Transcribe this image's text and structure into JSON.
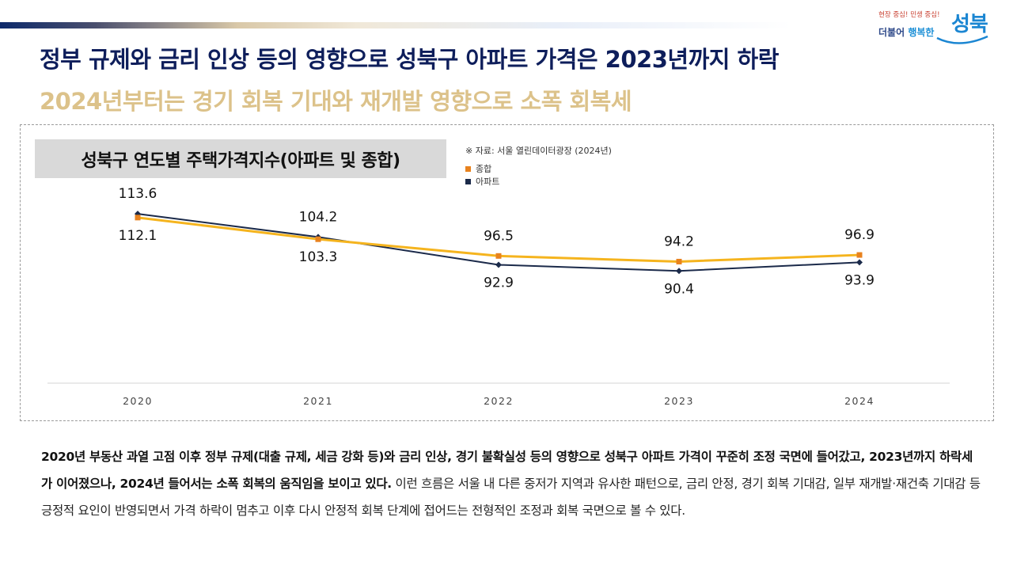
{
  "header": {
    "title": "정부 규제와 금리 인상 등의 영향으로 성북구 아파트 가격은 2023년까지 하락",
    "subtitle": "2024년부터는 경기 회복 기대와 재개발 영향으로 소폭 회복세"
  },
  "logo": {
    "tagline_1": "현장 중심!",
    "tagline_2": " 민생 중심!",
    "sub_1": "더불어 ",
    "sub_2": "행복한",
    "main": "성북"
  },
  "chart_data": {
    "type": "line",
    "title": "성북구 연도별 주택가격지수(아파트 및 종합)",
    "source": "※ 자료: 서울 열린데이터광장 (2024년)",
    "categories": [
      "2020",
      "2021",
      "2022",
      "2023",
      "2024"
    ],
    "series": [
      {
        "name": "종합",
        "values": [
          112.1,
          103.3,
          96.5,
          94.2,
          96.9
        ],
        "color": "#f5b41e",
        "marker_color": "#e8821e"
      },
      {
        "name": "아파트",
        "values": [
          113.6,
          104.2,
          92.9,
          90.4,
          93.9
        ],
        "color": "#1b2a4a",
        "marker_color": "#1b2a4a"
      }
    ],
    "legend_position": "top",
    "grid": false,
    "ylim": [
      45,
      125
    ]
  },
  "description": {
    "bold_1": "2020년 부동산 과열 고점 이후 정부 규제(대출 규제, 세금 강화 등)와 금리 인상, 경기 불확실성 등의 영향으로 성북구 아파트 가격이 꾸준히 조정 국면에 들어갔고, 2023년까지 하락세가 이어졌으나, 2024년 들어서는 소폭 회복의 움직임을 보이고 있다.",
    "normal_1": " 이런 흐름은 서울 내 다른 중저가 지역과 유사한 패턴으로, 금리 안정, 경기 회복 기대감, 일부 재개발·재건축 기대감 등 긍정적 요인이 반영되면서 가격 하락이 멈추고 이후 다시 안정적 회복 단계에 접어드는 전형적인 조정과 회복 국면으로 볼 수 있다."
  }
}
